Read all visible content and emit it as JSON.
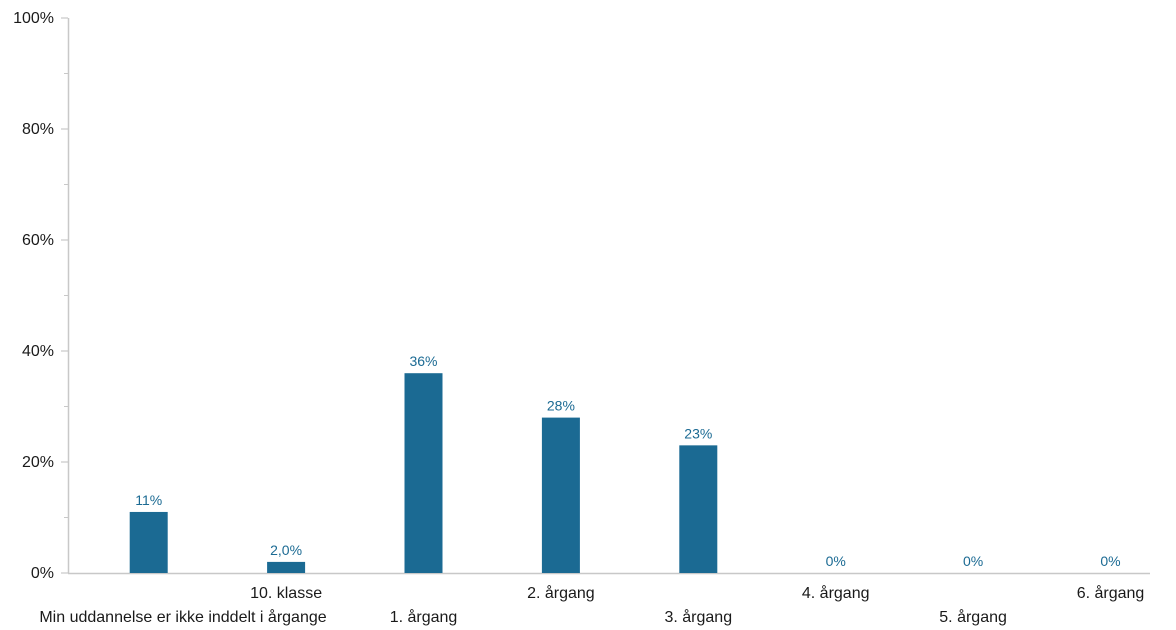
{
  "chart_data": {
    "type": "bar",
    "categories": [
      "Min uddannelse er ikke inddelt i årgange",
      "10. klasse",
      "1. årgang",
      "2. årgang",
      "3. årgang",
      "4. årgang",
      "5. årgang",
      "6. årgang"
    ],
    "values": [
      11,
      2,
      36,
      28,
      23,
      0,
      0,
      0
    ],
    "data_labels": [
      "11%",
      "2,0%",
      "36%",
      "28%",
      "23%",
      "0%",
      "0%",
      "0%"
    ],
    "yticks": [
      "0%",
      "20%",
      "40%",
      "60%",
      "80%",
      "100%"
    ],
    "ylim": [
      0,
      100
    ],
    "grid": false,
    "legend": "none",
    "colors": {
      "bar": "#1b6a93",
      "data_label": "#1b6a93",
      "axis": "#c8c8c8"
    }
  }
}
